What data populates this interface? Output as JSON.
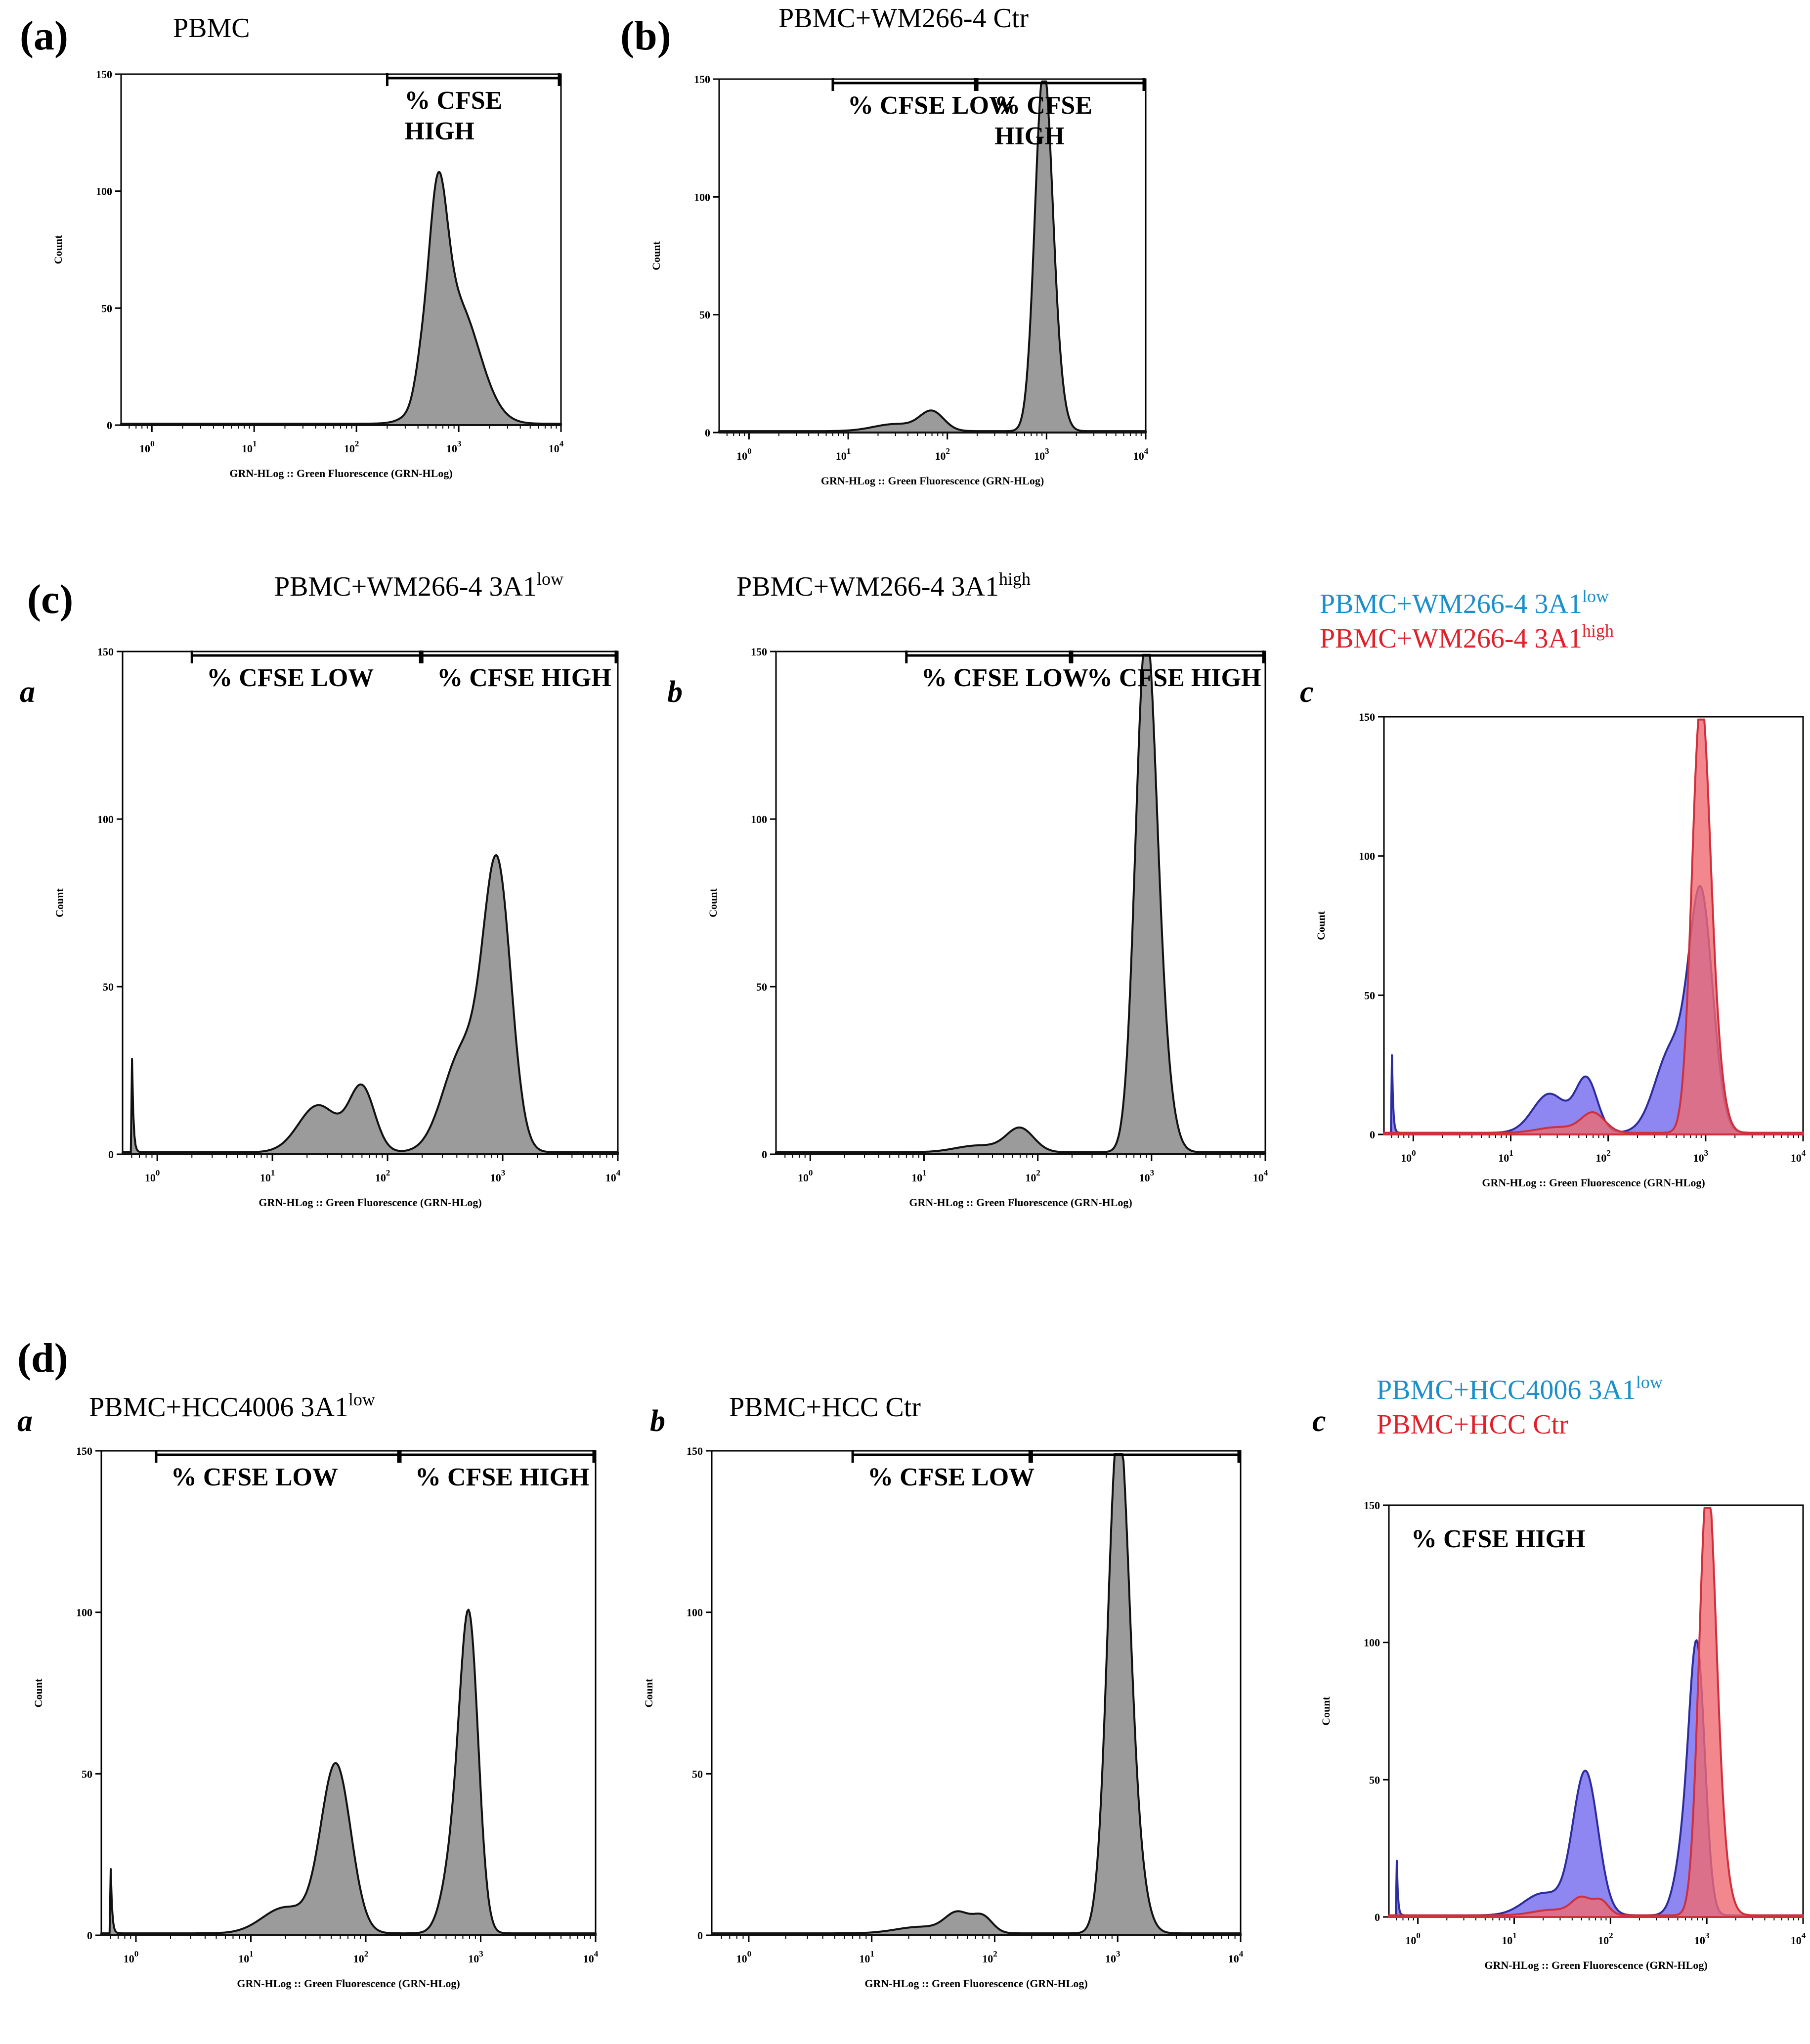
{
  "figure": {
    "x_axis_label": "GRN-HLog :: Green Fluorescence (GRN-HLog)",
    "y_axis_label": "Count",
    "colors": {
      "single_fill": "#9b9b9b",
      "single_line": "#111111",
      "blue_fill": "#7a72ee",
      "blue_line": "#2c2c9e",
      "red_fill": "#ef6a72",
      "red_line": "#d0303c",
      "legend_blue": "#1a8fc9",
      "legend_red": "#e0202a"
    }
  },
  "chart_data": [
    {
      "id": "a",
      "type": "area",
      "panel_label": "(a)",
      "sub_label": "",
      "title": "PBMC",
      "title_sup": "",
      "xscale": "log",
      "xlim": [
        0.5,
        10000
      ],
      "ylim": [
        0,
        150
      ],
      "xticks": [
        "10^0",
        "10^1",
        "10^2",
        "10^3",
        "10^4"
      ],
      "yticks": [
        0,
        50,
        100,
        150
      ],
      "gates": [
        {
          "label": "% CFSE HIGH",
          "range": [
            200,
            10000
          ]
        }
      ],
      "series": [
        {
          "name": "PBMC",
          "color": "gray",
          "peaks": [
            {
              "center": 620,
              "height": 70,
              "sigma": 0.09
            },
            {
              "center": 950,
              "height": 52,
              "sigma": 0.22
            },
            {
              "center": 420,
              "height": 9,
              "sigma": 0.06
            }
          ]
        }
      ]
    },
    {
      "id": "b",
      "type": "area",
      "panel_label": "(b)",
      "sub_label": "",
      "title": "PBMC+WM266-4 Ctr",
      "title_sup": "",
      "xscale": "log",
      "xlim": [
        0.5,
        10000
      ],
      "ylim": [
        0,
        150
      ],
      "xticks": [
        "10^0",
        "10^1",
        "10^2",
        "10^3",
        "10^4"
      ],
      "yticks": [
        0,
        50,
        100,
        150
      ],
      "gates": [
        {
          "label": "% CFSE LOW",
          "range": [
            7,
            200
          ]
        },
        {
          "label": "% CFSE HIGH",
          "range": [
            200,
            10000
          ]
        }
      ],
      "series": [
        {
          "name": "PBMC+WM266-4 Ctr",
          "color": "gray",
          "peaks": [
            {
              "center": 920,
              "height": 140,
              "sigma": 0.085
            },
            {
              "center": 1150,
              "height": 25,
              "sigma": 0.09
            },
            {
              "center": 70,
              "height": 8,
              "sigma": 0.12
            },
            {
              "center": 30,
              "height": 3,
              "sigma": 0.22
            }
          ]
        }
      ]
    },
    {
      "id": "ca",
      "type": "area",
      "panel_label": "(c)",
      "sub_label": "a",
      "title": "PBMC+WM266-4 3A1",
      "title_sup": "low",
      "xscale": "log",
      "xlim": [
        0.5,
        10000
      ],
      "ylim": [
        0,
        150
      ],
      "xticks": [
        "10^0",
        "10^1",
        "10^2",
        "10^3",
        "10^4"
      ],
      "yticks": [
        0,
        50,
        100,
        150
      ],
      "gates": [
        {
          "label": "% CFSE LOW",
          "range": [
            2,
            200
          ]
        },
        {
          "label": "% CFSE HIGH",
          "range": [
            200,
            10000
          ]
        }
      ],
      "series": [
        {
          "name": "PBMC+WM266-4 3A1 low",
          "color": "gray",
          "peaks": [
            {
              "center": 900,
              "height": 82,
              "sigma": 0.12
            },
            {
              "center": 450,
              "height": 30,
              "sigma": 0.17
            },
            {
              "center": 60,
              "height": 19,
              "sigma": 0.11
            },
            {
              "center": 25,
              "height": 14,
              "sigma": 0.17
            }
          ],
          "spike": {
            "x": 0.6,
            "height": 35
          }
        }
      ]
    },
    {
      "id": "cb",
      "type": "area",
      "panel_label": "",
      "sub_label": "b",
      "title": "PBMC+WM266-4 3A1",
      "title_sup": "high",
      "xscale": "log",
      "xlim": [
        0.5,
        10000
      ],
      "ylim": [
        0,
        150
      ],
      "xticks": [
        "10^0",
        "10^1",
        "10^2",
        "10^3",
        "10^4"
      ],
      "yticks": [
        0,
        50,
        100,
        150
      ],
      "gates": [
        {
          "label": "% CFSE LOW",
          "range": [
            7,
            200
          ]
        },
        {
          "label": "% CFSE HIGH",
          "range": [
            200,
            10000
          ]
        }
      ],
      "series": [
        {
          "name": "PBMC+WM266-4 3A1 high",
          "color": "gray",
          "peaks": [
            {
              "center": 880,
              "height": 140,
              "sigma": 0.09
            },
            {
              "center": 1150,
              "height": 30,
              "sigma": 0.1
            },
            {
              "center": 70,
              "height": 7,
              "sigma": 0.12
            },
            {
              "center": 30,
              "height": 2,
              "sigma": 0.2
            }
          ]
        }
      ]
    },
    {
      "id": "cc",
      "type": "area",
      "panel_label": "",
      "sub_label": "c",
      "title": "",
      "title_sup": "",
      "legend": [
        {
          "text": "PBMC+WM266-4 3A1",
          "sup": "low",
          "color": "blue"
        },
        {
          "text": "PBMC+WM266-4 3A1",
          "sup": "high",
          "color": "red"
        }
      ],
      "xscale": "log",
      "xlim": [
        0.5,
        10000
      ],
      "ylim": [
        0,
        150
      ],
      "xticks": [
        "10^0",
        "10^1",
        "10^2",
        "10^3",
        "10^4"
      ],
      "yticks": [
        0,
        50,
        100,
        150
      ],
      "gates": [],
      "series": [
        {
          "name": "PBMC+WM266-4 3A1 low",
          "color": "blue",
          "peaks": [
            {
              "center": 900,
              "height": 82,
              "sigma": 0.12
            },
            {
              "center": 450,
              "height": 30,
              "sigma": 0.17
            },
            {
              "center": 60,
              "height": 19,
              "sigma": 0.11
            },
            {
              "center": 25,
              "height": 14,
              "sigma": 0.17
            }
          ],
          "spike": {
            "x": 0.6,
            "height": 35
          }
        },
        {
          "name": "PBMC+WM266-4 3A1 high",
          "color": "red",
          "peaks": [
            {
              "center": 880,
              "height": 140,
              "sigma": 0.09
            },
            {
              "center": 1150,
              "height": 30,
              "sigma": 0.1
            },
            {
              "center": 70,
              "height": 7,
              "sigma": 0.12
            },
            {
              "center": 30,
              "height": 2,
              "sigma": 0.2
            }
          ]
        }
      ]
    },
    {
      "id": "da",
      "type": "area",
      "panel_label": "(d)",
      "sub_label": "a",
      "title": "PBMC+HCC4006 3A1",
      "title_sup": "low",
      "xscale": "log",
      "xlim": [
        0.5,
        10000
      ],
      "ylim": [
        0,
        150
      ],
      "xticks": [
        "10^0",
        "10^1",
        "10^2",
        "10^3",
        "10^4"
      ],
      "yticks": [
        0,
        50,
        100,
        150
      ],
      "gates": [
        {
          "label": "% CFSE LOW",
          "range": [
            1.5,
            200
          ]
        },
        {
          "label": "% CFSE HIGH",
          "range": [
            200,
            10000
          ]
        }
      ],
      "series": [
        {
          "name": "PBMC+HCC4006 3A1 low",
          "color": "gray",
          "peaks": [
            {
              "center": 800,
              "height": 88,
              "sigma": 0.08
            },
            {
              "center": 600,
              "height": 25,
              "sigma": 0.1
            },
            {
              "center": 55,
              "height": 52,
              "sigma": 0.13
            },
            {
              "center": 20,
              "height": 8,
              "sigma": 0.2
            }
          ],
          "spike": {
            "x": 0.6,
            "height": 25
          }
        }
      ]
    },
    {
      "id": "db",
      "type": "area",
      "panel_label": "",
      "sub_label": "b",
      "title": "PBMC+HCC Ctr",
      "title_sup": "",
      "xscale": "log",
      "xlim": [
        0.5,
        10000
      ],
      "ylim": [
        0,
        150
      ],
      "xticks": [
        "10^0",
        "10^1",
        "10^2",
        "10^3",
        "10^4"
      ],
      "yticks": [
        0,
        50,
        100,
        150
      ],
      "gates": [
        {
          "label": "% CFSE LOW",
          "range": [
            7,
            200
          ]
        },
        {
          "label": "",
          "range": [
            200,
            10000
          ]
        }
      ],
      "series": [
        {
          "name": "PBMC+HCC Ctr",
          "color": "gray",
          "peaks": [
            {
              "center": 1000,
              "height": 140,
              "sigma": 0.085
            },
            {
              "center": 1250,
              "height": 30,
              "sigma": 0.1
            },
            {
              "center": 50,
              "height": 6,
              "sigma": 0.1
            },
            {
              "center": 80,
              "height": 5,
              "sigma": 0.08
            },
            {
              "center": 25,
              "height": 2,
              "sigma": 0.2
            }
          ]
        }
      ]
    },
    {
      "id": "dc",
      "type": "area",
      "panel_label": "",
      "sub_label": "c",
      "title": "",
      "title_sup": "",
      "inner_label": "% CFSE HIGH",
      "legend": [
        {
          "text": "PBMC+HCC4006 3A1",
          "sup": "low",
          "color": "blue"
        },
        {
          "text": "PBMC+HCC Ctr",
          "sup": "",
          "color": "red"
        }
      ],
      "xscale": "log",
      "xlim": [
        0.5,
        10000
      ],
      "ylim": [
        0,
        150
      ],
      "xticks": [
        "10^0",
        "10^1",
        "10^2",
        "10^3",
        "10^4"
      ],
      "yticks": [
        0,
        50,
        100,
        150
      ],
      "gates": [],
      "series": [
        {
          "name": "PBMC+HCC4006 3A1 low",
          "color": "blue",
          "peaks": [
            {
              "center": 800,
              "height": 88,
              "sigma": 0.08
            },
            {
              "center": 600,
              "height": 25,
              "sigma": 0.1
            },
            {
              "center": 55,
              "height": 52,
              "sigma": 0.13
            },
            {
              "center": 20,
              "height": 8,
              "sigma": 0.2
            }
          ],
          "spike": {
            "x": 0.6,
            "height": 25
          }
        },
        {
          "name": "PBMC+HCC Ctr",
          "color": "red",
          "peaks": [
            {
              "center": 1000,
              "height": 140,
              "sigma": 0.085
            },
            {
              "center": 1250,
              "height": 30,
              "sigma": 0.1
            },
            {
              "center": 50,
              "height": 6,
              "sigma": 0.1
            },
            {
              "center": 80,
              "height": 5,
              "sigma": 0.08
            },
            {
              "center": 25,
              "height": 2,
              "sigma": 0.2
            }
          ]
        }
      ]
    }
  ]
}
